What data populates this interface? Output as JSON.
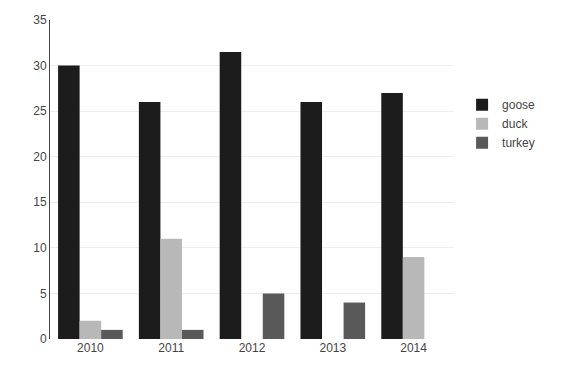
{
  "chart_data": {
    "type": "bar",
    "categories": [
      "2010",
      "2011",
      "2012",
      "2013",
      "2014"
    ],
    "series": [
      {
        "name": "goose",
        "color": "#1c1c1c",
        "values": [
          30,
          26,
          31.5,
          26,
          27
        ]
      },
      {
        "name": "duck",
        "color": "#b8b8b8",
        "values": [
          2,
          11,
          0,
          0,
          9
        ]
      },
      {
        "name": "turkey",
        "color": "#595959",
        "values": [
          1,
          1,
          5,
          4,
          0
        ]
      }
    ],
    "ylim": [
      0,
      35
    ],
    "yticks": [
      0,
      5,
      10,
      15,
      20,
      25,
      30,
      35
    ],
    "grid": true,
    "legend": "right"
  }
}
